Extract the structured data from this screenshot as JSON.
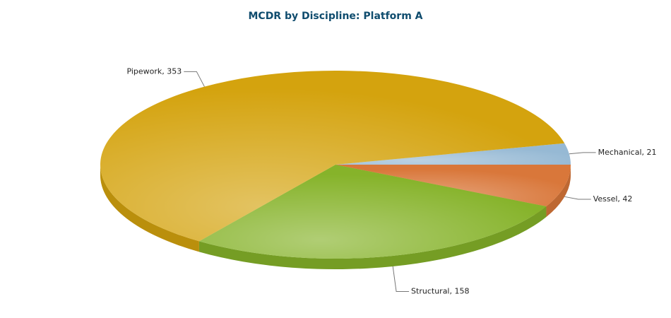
{
  "chart_data": {
    "type": "pie3d",
    "title": "MCDR by Discipline: Platform A",
    "categories": [
      "Mechanical",
      "Vessel",
      "Structural",
      "Pipework"
    ],
    "values": [
      21,
      42,
      158,
      353
    ],
    "value_labels": [
      "Mechanical, 21",
      "Vessel, 42",
      "Structural, 158",
      "Pipework, 353"
    ],
    "colors": [
      "#96b9d4",
      "#d9773a",
      "#86b32a",
      "#d4a30e"
    ]
  }
}
